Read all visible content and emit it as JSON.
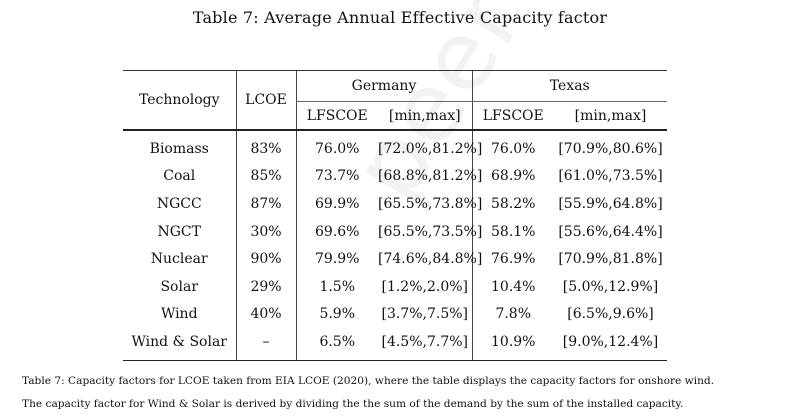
{
  "table": {
    "title": "Table 7: Average Annual Effective Capacity factor",
    "headers": {
      "technology": "Technology",
      "lcoe": "LCOE",
      "germany": "Germany",
      "texas": "Texas",
      "lfscoe": "LFSCOE",
      "range": "[min,max]"
    },
    "rows": [
      {
        "technology": "Biomass",
        "lcoe": "83%",
        "de_lfscoe": "76.0%",
        "de_range": "[72.0%,81.2%]",
        "tx_lfscoe": "76.0%",
        "tx_range": "[70.9%,80.6%]"
      },
      {
        "technology": "Coal",
        "lcoe": "85%",
        "de_lfscoe": "73.7%",
        "de_range": "[68.8%,81.2%]",
        "tx_lfscoe": "68.9%",
        "tx_range": "[61.0%,73.5%]"
      },
      {
        "technology": "NGCC",
        "lcoe": "87%",
        "de_lfscoe": "69.9%",
        "de_range": "[65.5%,73.8%]",
        "tx_lfscoe": "58.2%",
        "tx_range": "[55.9%,64.8%]"
      },
      {
        "technology": "NGCT",
        "lcoe": "30%",
        "de_lfscoe": "69.6%",
        "de_range": "[65.5%,73.5%]",
        "tx_lfscoe": "58.1%",
        "tx_range": "[55.6%,64.4%]"
      },
      {
        "technology": "Nuclear",
        "lcoe": "90%",
        "de_lfscoe": "79.9%",
        "de_range": "[74.6%,84.8%]",
        "tx_lfscoe": "76.9%",
        "tx_range": "[70.9%,81.8%]"
      },
      {
        "technology": "Solar",
        "lcoe": "29%",
        "de_lfscoe": "1.5%",
        "de_range": "[1.2%,2.0%]",
        "tx_lfscoe": "10.4%",
        "tx_range": "[5.0%,12.9%]"
      },
      {
        "technology": "Wind",
        "lcoe": "40%",
        "de_lfscoe": "5.9%",
        "de_range": "[3.7%,7.5%]",
        "tx_lfscoe": "7.8%",
        "tx_range": "[6.5%,9.6%]"
      },
      {
        "technology": "Wind & Solar",
        "lcoe": "–",
        "de_lfscoe": "6.5%",
        "de_range": "[4.5%,7.7%]",
        "tx_lfscoe": "10.9%",
        "tx_range": "[9.0%,12.4%]"
      }
    ]
  },
  "caption": {
    "line1": "Table 7: Capacity factors for LCOE taken from EIA LCOE (2020), where the table displays the capacity factors for onshore wind.",
    "line2": "The capacity factor for Wind & Solar is derived by dividing the the sum of the demand by the sum of the installed capacity."
  }
}
